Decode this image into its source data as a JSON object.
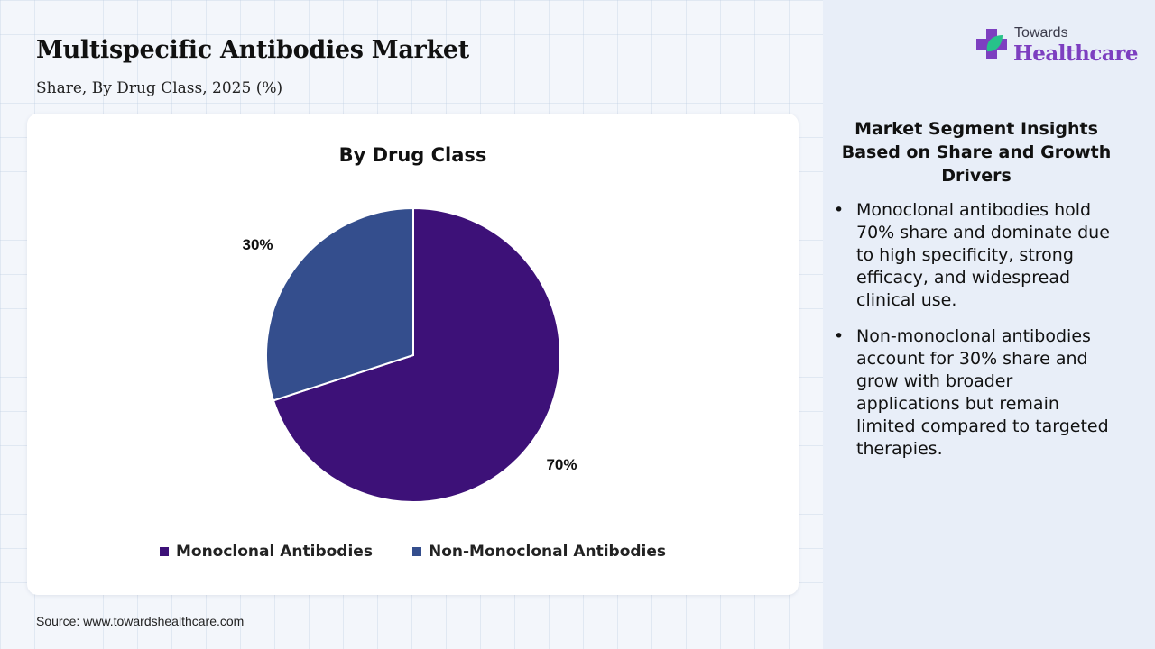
{
  "title": "Multispecific Antibodies Market",
  "subtitle": "Share, By Drug Class, 2025 (%)",
  "source": "Source: www.towardshealthcare.com",
  "logo": {
    "line1": "Towards",
    "line2": "Healthcare"
  },
  "insights": {
    "title": "Market Segment Insights Based on Share and Growth Drivers",
    "bullet_symbol": "•",
    "items": [
      "Monoclonal antibodies hold 70% share and dominate due to high specificity, strong efficacy, and widespread clinical use.",
      "Non-monoclonal antibodies account for 30% share and grow with broader applications but remain limited compared to targeted therapies."
    ]
  },
  "colors": {
    "monoclonal": "#3d1178",
    "non_monoclonal": "#344e8d",
    "logo_purple": "#7d3fc0",
    "logo_green": "#27c28a"
  },
  "chart_data": {
    "type": "pie",
    "title": "By Drug Class",
    "categories": [
      "Monoclonal Antibodies",
      "Non-Monoclonal Antibodies"
    ],
    "values": [
      70,
      30
    ],
    "data_labels": [
      "70%",
      "30%"
    ],
    "start_angle_deg": 0,
    "direction": "clockwise",
    "legend_position": "bottom"
  }
}
